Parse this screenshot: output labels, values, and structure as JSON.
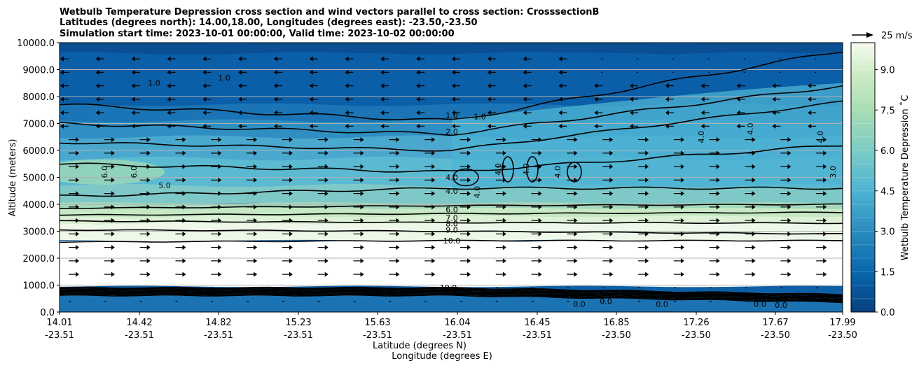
{
  "chart_data": {
    "type": "contour",
    "title_lines": [
      "Wetbulb Temperature Depression cross section and wind vectors parallel to cross section: CrosssectionB",
      "Latitudes (degrees north): 14.00,18.00, Longitudes (degrees east): -23.50,-23.50",
      "Simulation start time: 2023-10-01 00:00:00, Valid time: 2023-10-02 00:00:00"
    ],
    "ylabel": "Altitude (meters)",
    "xlabel_lat": "Latitude (degrees N)",
    "xlabel_lon": "Longitude (degrees E)",
    "ylim": [
      0,
      10000
    ],
    "y_ticks": [
      "0.0",
      "1000.0",
      "2000.0",
      "3000.0",
      "4000.0",
      "5000.0",
      "6000.0",
      "7000.0",
      "8000.0",
      "9000.0",
      "10000.0"
    ],
    "x_ticks": [
      {
        "lat": "14.01",
        "lon": "-23.51"
      },
      {
        "lat": "14.42",
        "lon": "-23.51"
      },
      {
        "lat": "14.82",
        "lon": "-23.51"
      },
      {
        "lat": "15.23",
        "lon": "-23.51"
      },
      {
        "lat": "15.63",
        "lon": "-23.51"
      },
      {
        "lat": "16.04",
        "lon": "-23.51"
      },
      {
        "lat": "16.45",
        "lon": "-23.51"
      },
      {
        "lat": "16.85",
        "lon": "-23.50"
      },
      {
        "lat": "17.26",
        "lon": "-23.50"
      },
      {
        "lat": "17.67",
        "lon": "-23.50"
      },
      {
        "lat": "17.99",
        "lon": "-23.50"
      }
    ],
    "grid": "horizontal",
    "colorbar": {
      "label": "Wetbulb Temperature Depression ˚C",
      "range": [
        0,
        10
      ],
      "ticks": [
        "0.0",
        "1.5",
        "3.0",
        "4.5",
        "6.0",
        "7.5",
        "9.0"
      ],
      "colormap": "GnBu_r"
    },
    "quiver_key": "25 m/s",
    "contour_levels": [
      {
        "value": 1.0,
        "alt_m": 7300,
        "label": "1.0"
      },
      {
        "value": 2.0,
        "alt_m": 6700,
        "label": "2.0"
      },
      {
        "value": 4.0,
        "alt_m": 5000,
        "label": "4.0"
      },
      {
        "value": 4.0,
        "alt_m": 4500,
        "label": "4.0"
      },
      {
        "value": 6.0,
        "alt_m": 3800,
        "label": "6.0"
      },
      {
        "value": 7.0,
        "alt_m": 3500,
        "label": "7.0"
      },
      {
        "value": 8.0,
        "alt_m": 3280,
        "label": "8.0"
      },
      {
        "value": 9.0,
        "alt_m": 3050,
        "label": "9.0"
      },
      {
        "value": 10.0,
        "alt_m": 2650,
        "label": "10.0"
      }
    ],
    "extra_labels": [
      "1.0",
      "1.0",
      "1.0",
      "4.0",
      "4.0",
      "4.0",
      "4.0",
      "4.0",
      "4.0",
      "4.0",
      "3.0",
      "6.0",
      "6.0",
      "5.0",
      "0.0",
      "0.0",
      "0.0",
      "0.0",
      "0.0",
      "10.0"
    ],
    "profile_columns": [
      {
        "pos": 0.0,
        "colors": [
          "#08589e",
          "#0868ac",
          "#2b8cbe",
          "#4eb3d3",
          "#7bccc4",
          "#a8ddb5",
          "#ccebc5",
          "#f0f9e8",
          "#ffffff",
          "#ffffff",
          "#0868ac",
          "#2b8cbe"
        ]
      },
      {
        "pos": 0.25,
        "colors": [
          "#08589e",
          "#0868ac",
          "#2b8cbe",
          "#4eb3d3",
          "#7bccc4",
          "#a8ddb5",
          "#ccebc5",
          "#f0f9e8",
          "#ffffff",
          "#ffffff",
          "#0868ac",
          "#2b8cbe"
        ]
      },
      {
        "pos": 0.5,
        "colors": [
          "#08589e",
          "#08589e",
          "#2b8cbe",
          "#4eb3d3",
          "#4eb3d3",
          "#7bccc4",
          "#ccebc5",
          "#e0f3db",
          "#ffffff",
          "#ffffff",
          "#0868ac",
          "#2b8cbe"
        ]
      },
      {
        "pos": 0.75,
        "colors": [
          "#08589e",
          "#0868ac",
          "#4eb3d3",
          "#4eb3d3",
          "#4eb3d3",
          "#7bccc4",
          "#ccebc5",
          "#e0f3db",
          "#ffffff",
          "#ffffff",
          "#0868ac",
          "#2b8cbe"
        ]
      },
      {
        "pos": 1.0,
        "colors": [
          "#08589e",
          "#2b8cbe",
          "#4eb3d3",
          "#4eb3d3",
          "#4eb3d3",
          "#4eb3d3",
          "#7bccc4",
          "#e0f3db",
          "#ffffff",
          "#ffffff",
          "#0868ac",
          "#2b8cbe"
        ]
      }
    ]
  }
}
